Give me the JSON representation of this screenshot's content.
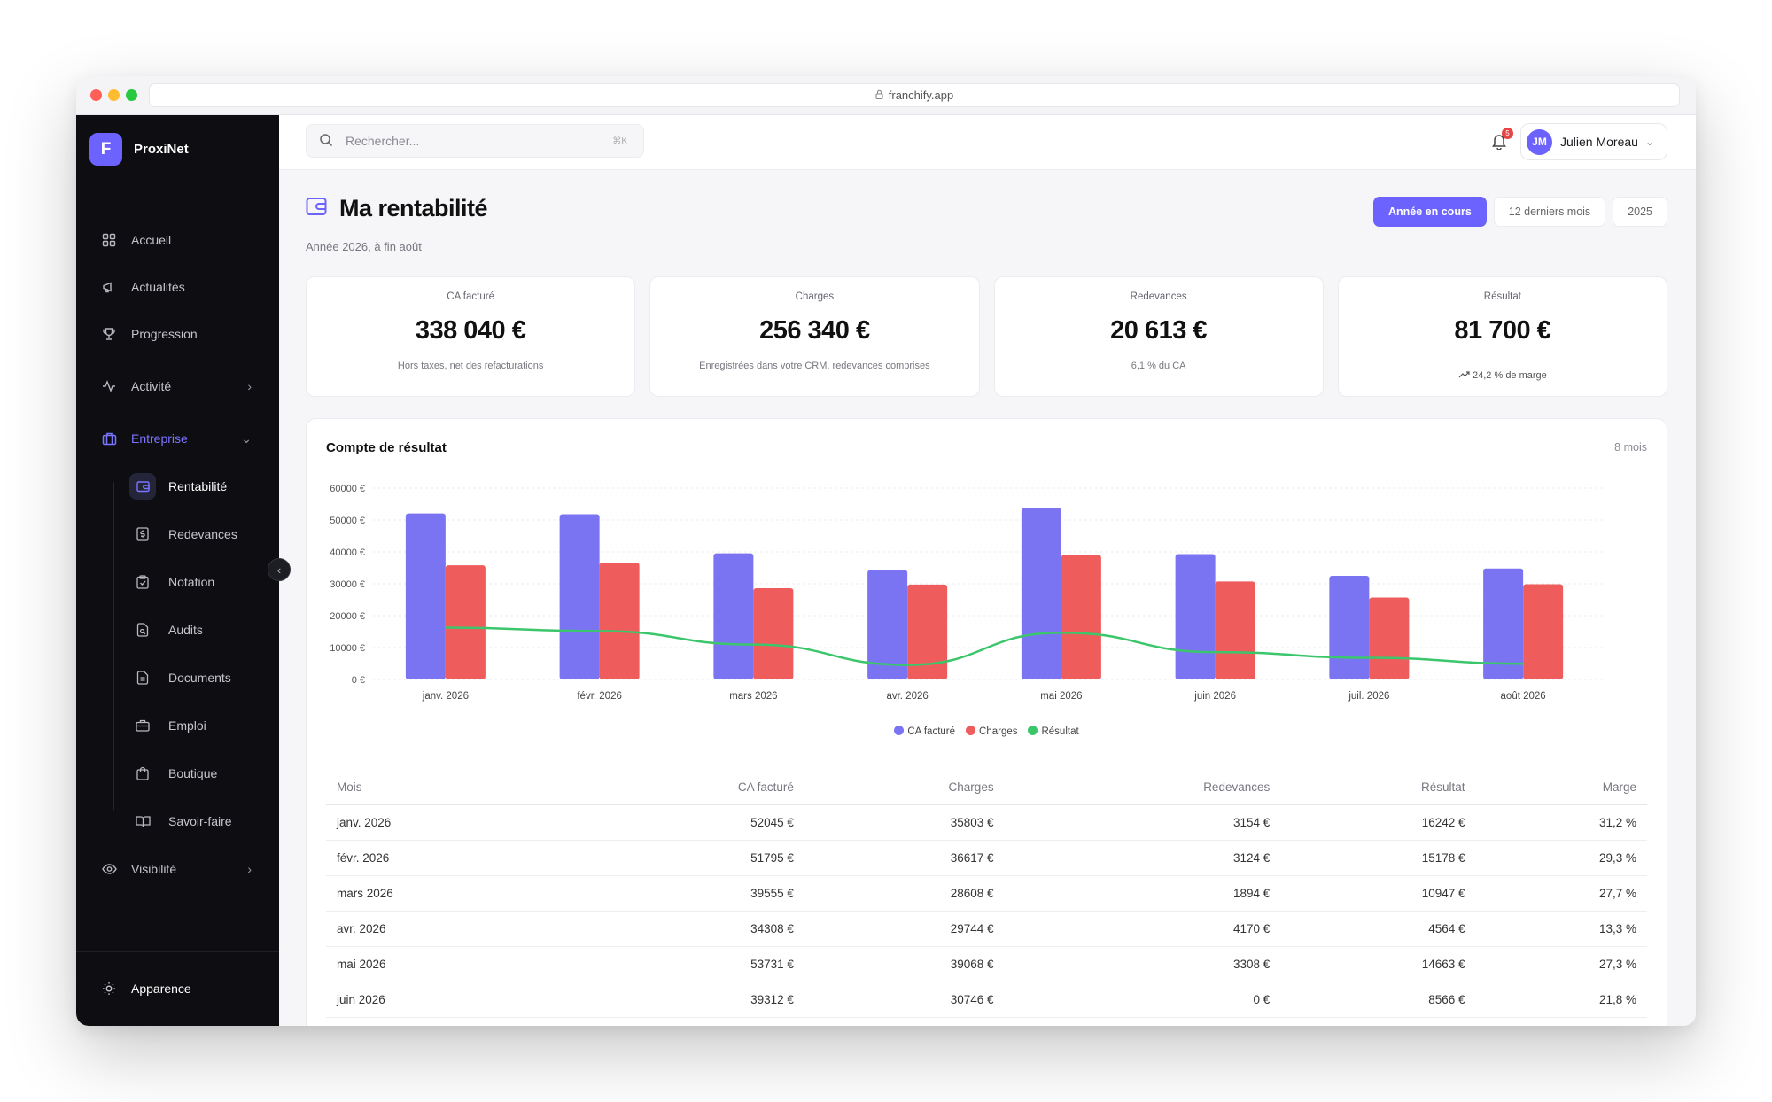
{
  "browser": {
    "url": "franchify.app"
  },
  "brand": {
    "logo_letter": "F",
    "name": "ProxiNet"
  },
  "nav": {
    "items": [
      {
        "label": "Accueil",
        "icon": "grid-icon"
      },
      {
        "label": "Actualités",
        "icon": "megaphone-icon"
      },
      {
        "label": "Progression",
        "icon": "trophy-icon"
      },
      {
        "label": "Activité",
        "icon": "activity-icon"
      },
      {
        "label": "Entreprise",
        "icon": "briefcase-icon"
      },
      {
        "label": "Visibilité",
        "icon": "eye-icon"
      }
    ],
    "sub_items": [
      {
        "label": "Rentabilité",
        "icon": "wallet-icon"
      },
      {
        "label": "Redevances",
        "icon": "dollar-doc-icon"
      },
      {
        "label": "Notation",
        "icon": "clipboard-check-icon"
      },
      {
        "label": "Audits",
        "icon": "file-search-icon"
      },
      {
        "label": "Documents",
        "icon": "document-icon"
      },
      {
        "label": "Emploi",
        "icon": "briefcase-outline-icon"
      },
      {
        "label": "Boutique",
        "icon": "shopping-bag-icon"
      },
      {
        "label": "Savoir-faire",
        "icon": "book-open-icon"
      }
    ],
    "footer_label": "Apparence"
  },
  "topbar": {
    "search_placeholder": "Rechercher...",
    "search_shortcut": "⌘K",
    "notif_count": "5",
    "user_initials": "JM",
    "user_name": "Julien Moreau"
  },
  "page": {
    "title": "Ma rentabilité",
    "subtitle": "Année 2026, à fin août",
    "periods": [
      "Année en cours",
      "12 derniers mois",
      "2025"
    ]
  },
  "kpis": [
    {
      "label": "CA facturé",
      "value": "338 040 €",
      "note": "Hors taxes, net des refacturations"
    },
    {
      "label": "Charges",
      "value": "256 340 €",
      "note": "Enregistrées dans votre CRM, redevances comprises"
    },
    {
      "label": "Redevances",
      "value": "20 613 €",
      "note": "6,1 % du CA"
    },
    {
      "label": "Résultat",
      "value": "81 700 €",
      "note": "24,2 % de marge"
    }
  ],
  "card": {
    "title": "Compte de résultat",
    "meta": "8 mois"
  },
  "chart_data": {
    "type": "bar",
    "categories": [
      "janv. 2026",
      "févr. 2026",
      "mars 2026",
      "avr. 2026",
      "mai 2026",
      "juin 2026",
      "juil. 2026",
      "août 2026"
    ],
    "y_ticks": [
      "0 €",
      "10000 €",
      "20000 €",
      "30000 €",
      "40000 €",
      "50000 €",
      "60000 €"
    ],
    "ylim": [
      0,
      60000
    ],
    "series": [
      {
        "name": "CA facturé",
        "kind": "bar",
        "color": "#7a74f2",
        "values": [
          52045,
          51795,
          39555,
          34308,
          53731,
          39312,
          32500,
          34794
        ]
      },
      {
        "name": "Charges",
        "kind": "bar",
        "color": "#ee5c5c",
        "values": [
          35803,
          36617,
          28608,
          29744,
          39068,
          30746,
          25700,
          29854
        ]
      },
      {
        "name": "Résultat",
        "kind": "line",
        "color": "#3cc66c",
        "values": [
          16242,
          15178,
          10947,
          4564,
          14663,
          8566,
          6800,
          4940
        ]
      }
    ],
    "legend_position": "bottom",
    "grid": true
  },
  "table": {
    "headers": [
      "Mois",
      "CA facturé",
      "Charges",
      "Redevances",
      "Résultat",
      "Marge"
    ],
    "rows": [
      [
        "janv. 2026",
        "52045 €",
        "35803 €",
        "3154 €",
        "16242 €",
        "31,2 %"
      ],
      [
        "févr. 2026",
        "51795 €",
        "36617 €",
        "3124 €",
        "15178 €",
        "29,3 %"
      ],
      [
        "mars 2026",
        "39555 €",
        "28608 €",
        "1894 €",
        "10947 €",
        "27,7 %"
      ],
      [
        "avr. 2026",
        "34308 €",
        "29744 €",
        "4170 €",
        "4564 €",
        "13,3 %"
      ],
      [
        "mai 2026",
        "53731 €",
        "39068 €",
        "3308 €",
        "14663 €",
        "27,3 %"
      ],
      [
        "juin 2026",
        "39312 €",
        "30746 €",
        "0 €",
        "8566 €",
        "21,8 %"
      ]
    ]
  },
  "colors": {
    "accent": "#6c63ff",
    "sidebar_bg": "#0e0e12",
    "bar_ca": "#7a74f2",
    "bar_charges": "#ee5c5c",
    "line_resultat": "#3cc66c"
  }
}
